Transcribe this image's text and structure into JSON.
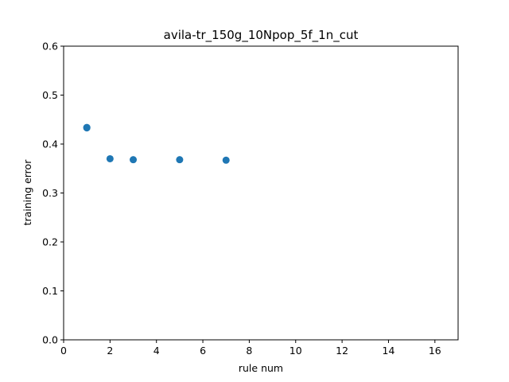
{
  "chart_data": {
    "type": "scatter",
    "title": "avila-tr_150g_10Npop_5f_1n_cut",
    "xlabel": "rule num",
    "ylabel": "training error",
    "xlim": [
      0,
      17
    ],
    "ylim": [
      0,
      0.6
    ],
    "xticks": [
      "0",
      "2",
      "4",
      "6",
      "8",
      "10",
      "12",
      "14",
      "16"
    ],
    "yticks": [
      "0.0",
      "0.1",
      "0.2",
      "0.3",
      "0.4",
      "0.5",
      "0.6"
    ],
    "grid": false,
    "series": [
      {
        "color": "#1f77b4",
        "points": [
          {
            "x": 1,
            "y": 0.433
          },
          {
            "x": 1,
            "y": 0.434
          },
          {
            "x": 2,
            "y": 0.37
          },
          {
            "x": 3,
            "y": 0.368
          },
          {
            "x": 5,
            "y": 0.368
          },
          {
            "x": 7,
            "y": 0.367
          }
        ]
      }
    ]
  }
}
